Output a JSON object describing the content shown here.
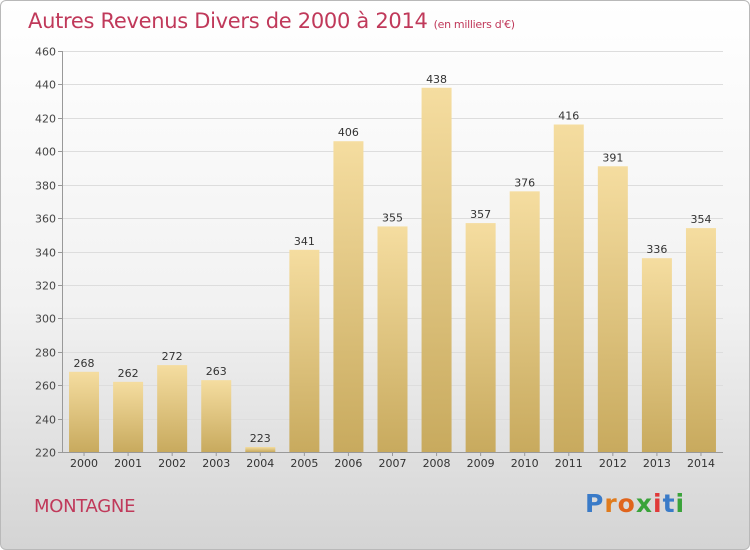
{
  "title": "Autres Revenus Divers de 2000 à 2014",
  "unit": "(en milliers d'€)",
  "commune": "MONTAGNE",
  "logo_text": "Proxiti",
  "logo_letter_colors": [
    "#3a7bc8",
    "#e07b1c",
    "#e0641c",
    "#3aa33a",
    "#e03a3a",
    "#3a7bc8",
    "#3aa33a"
  ],
  "colors": {
    "accent": "#c0395a",
    "bar_top": "#f5dda0",
    "bar_bottom": "#c8aa5e"
  },
  "chart_data": {
    "type": "bar",
    "title": "Autres Revenus Divers de 2000 à 2014",
    "xlabel": "",
    "ylabel": "",
    "categories": [
      "2000",
      "2001",
      "2002",
      "2003",
      "2004",
      "2005",
      "2006",
      "2007",
      "2008",
      "2009",
      "2010",
      "2011",
      "2012",
      "2013",
      "2014"
    ],
    "values": [
      268,
      262,
      272,
      263,
      223,
      341,
      406,
      355,
      438,
      357,
      376,
      416,
      391,
      336,
      354
    ],
    "ylim": [
      220,
      460
    ],
    "yticks": [
      220,
      240,
      260,
      280,
      300,
      320,
      340,
      360,
      380,
      400,
      420,
      440,
      460
    ],
    "grid": true,
    "legend": "none"
  }
}
